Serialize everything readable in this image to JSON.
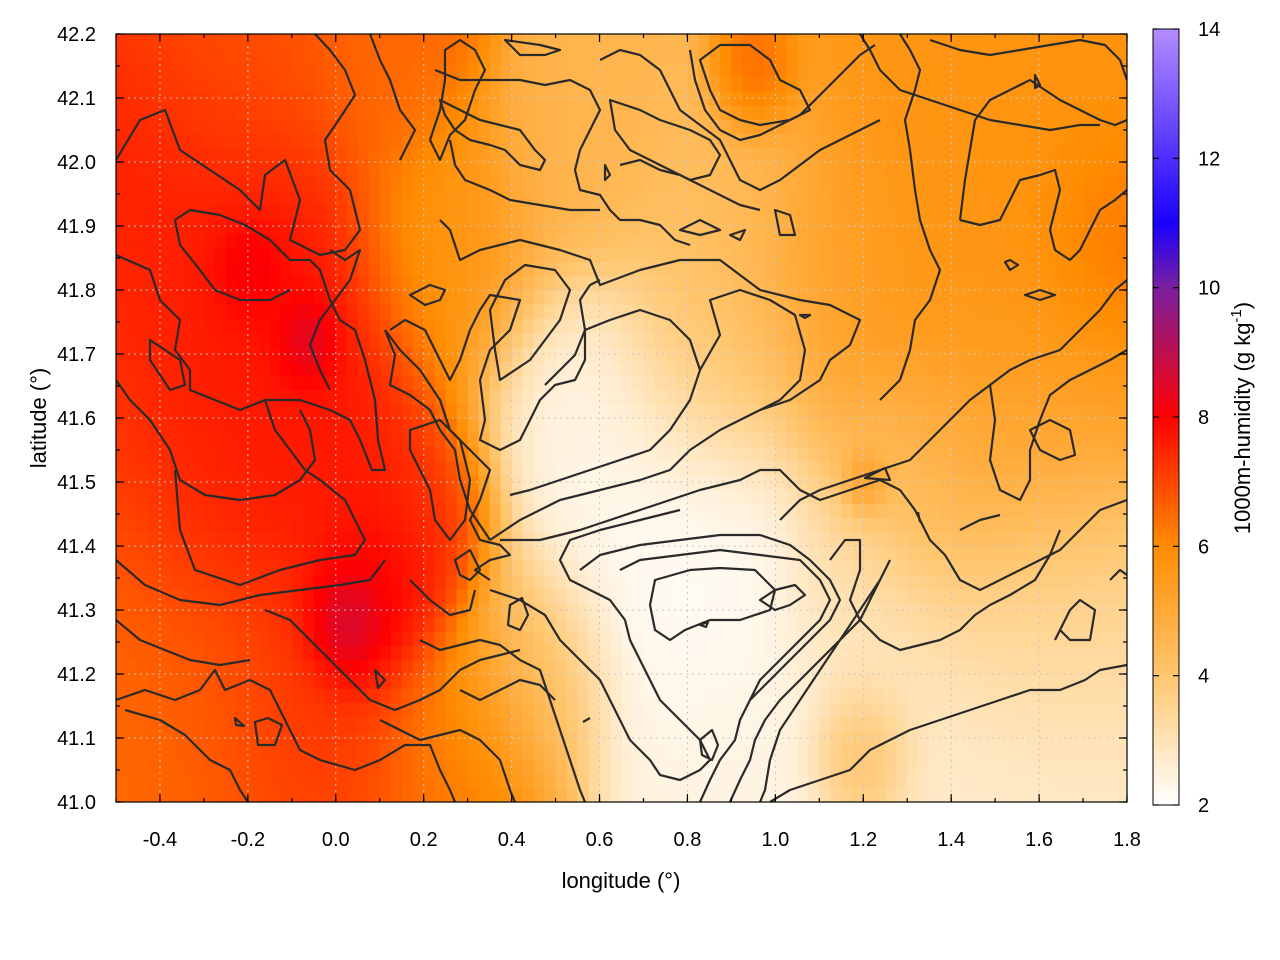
{
  "chart_data": {
    "type": "heatmap",
    "xlabel": "longitude (°)",
    "ylabel": "latitude (°)",
    "colorbar_label": "1000m-humidity (g kg",
    "colorbar_label_sup": "-1",
    "colorbar_label_end": ")",
    "xlim": [
      -0.5,
      1.8
    ],
    "ylim": [
      41.0,
      42.2
    ],
    "clim": [
      2,
      14
    ],
    "x_ticks": [
      {
        "value": -0.4,
        "label": "-0.4"
      },
      {
        "value": -0.2,
        "label": "-0.2"
      },
      {
        "value": 0.0,
        "label": "0.0"
      },
      {
        "value": 0.2,
        "label": "0.2"
      },
      {
        "value": 0.4,
        "label": "0.4"
      },
      {
        "value": 0.6,
        "label": "0.6"
      },
      {
        "value": 0.8,
        "label": "0.8"
      },
      {
        "value": 1.0,
        "label": "1.0"
      },
      {
        "value": 1.2,
        "label": "1.2"
      },
      {
        "value": 1.4,
        "label": "1.4"
      },
      {
        "value": 1.6,
        "label": "1.6"
      },
      {
        "value": 1.8,
        "label": "1.8"
      }
    ],
    "y_ticks": [
      {
        "value": 41.0,
        "label": "41.0"
      },
      {
        "value": 41.1,
        "label": "41.1"
      },
      {
        "value": 41.2,
        "label": "41.2"
      },
      {
        "value": 41.3,
        "label": "41.3"
      },
      {
        "value": 41.4,
        "label": "41.4"
      },
      {
        "value": 41.5,
        "label": "41.5"
      },
      {
        "value": 41.6,
        "label": "41.6"
      },
      {
        "value": 41.7,
        "label": "41.7"
      },
      {
        "value": 41.8,
        "label": "41.8"
      },
      {
        "value": 41.9,
        "label": "41.9"
      },
      {
        "value": 42.0,
        "label": "42.0"
      },
      {
        "value": 42.1,
        "label": "42.1"
      },
      {
        "value": 42.2,
        "label": "42.2"
      }
    ],
    "colorbar_ticks": [
      {
        "value": 2,
        "label": "2"
      },
      {
        "value": 4,
        "label": "4"
      },
      {
        "value": 6,
        "label": "6"
      },
      {
        "value": 8,
        "label": "8"
      },
      {
        "value": 10,
        "label": "10"
      },
      {
        "value": 12,
        "label": "12"
      },
      {
        "value": 14,
        "label": "14"
      }
    ],
    "colormap": [
      {
        "value": 2,
        "color": "#ffffff"
      },
      {
        "value": 4,
        "color": "#ffc66e"
      },
      {
        "value": 6,
        "color": "#ff8c00"
      },
      {
        "value": 8,
        "color": "#ff0000"
      },
      {
        "value": 10,
        "color": "#7a1fa0"
      },
      {
        "value": 11,
        "color": "#1a00ff"
      },
      {
        "value": 14,
        "color": "#b48cff"
      }
    ],
    "grid": true,
    "humidity_field_blobs": [
      {
        "lon": -0.5,
        "lat": 41.0,
        "value": 6.5,
        "spread": 0.6
      },
      {
        "lon": -0.35,
        "lat": 41.9,
        "value": 7.6,
        "spread": 0.25
      },
      {
        "lon": -0.3,
        "lat": 41.6,
        "value": 7.5,
        "spread": 0.25
      },
      {
        "lon": -0.15,
        "lat": 41.7,
        "value": 8.0,
        "spread": 0.25
      },
      {
        "lon": -0.1,
        "lat": 41.45,
        "value": 7.8,
        "spread": 0.25
      },
      {
        "lon": -0.07,
        "lat": 41.72,
        "value": 9.6,
        "spread": 0.06
      },
      {
        "lon": -0.2,
        "lat": 41.83,
        "value": 9.0,
        "spread": 0.07
      },
      {
        "lon": 0.02,
        "lat": 41.28,
        "value": 10.0,
        "spread": 0.08
      },
      {
        "lon": 0.1,
        "lat": 41.35,
        "value": 8.4,
        "spread": 0.12
      },
      {
        "lon": -0.1,
        "lat": 41.1,
        "value": 7.5,
        "spread": 0.18
      },
      {
        "lon": -0.3,
        "lat": 41.15,
        "value": 6.6,
        "spread": 0.18
      },
      {
        "lon": 0.2,
        "lat": 41.45,
        "value": 7.3,
        "spread": 0.12
      },
      {
        "lon": 0.25,
        "lat": 41.85,
        "value": 5.6,
        "spread": 0.18
      },
      {
        "lon": 0.1,
        "lat": 42.15,
        "value": 6.5,
        "spread": 0.15
      },
      {
        "lon": -0.2,
        "lat": 42.15,
        "value": 6.8,
        "spread": 0.2
      },
      {
        "lon": 0.3,
        "lat": 41.1,
        "value": 6.2,
        "spread": 0.15
      },
      {
        "lon": 0.45,
        "lat": 41.2,
        "value": 4.2,
        "spread": 0.14
      },
      {
        "lon": 0.55,
        "lat": 42.0,
        "value": 4.6,
        "spread": 0.15
      },
      {
        "lon": 0.55,
        "lat": 41.6,
        "value": 2.3,
        "spread": 0.18
      },
      {
        "lon": 0.75,
        "lat": 41.35,
        "value": 2.1,
        "spread": 0.25
      },
      {
        "lon": 0.9,
        "lat": 41.05,
        "value": 2.4,
        "spread": 0.2
      },
      {
        "lon": 0.85,
        "lat": 41.75,
        "value": 4.0,
        "spread": 0.2
      },
      {
        "lon": 0.95,
        "lat": 42.12,
        "value": 6.8,
        "spread": 0.07
      },
      {
        "lon": 0.9,
        "lat": 41.95,
        "value": 4.4,
        "spread": 0.15
      },
      {
        "lon": 1.1,
        "lat": 41.85,
        "value": 5.2,
        "spread": 0.15
      },
      {
        "lon": 1.4,
        "lat": 41.9,
        "value": 5.6,
        "spread": 0.3
      },
      {
        "lon": 1.6,
        "lat": 42.0,
        "value": 5.8,
        "spread": 0.25
      },
      {
        "lon": 1.75,
        "lat": 41.9,
        "value": 6.5,
        "spread": 0.12
      },
      {
        "lon": 1.5,
        "lat": 41.55,
        "value": 5.2,
        "spread": 0.2
      },
      {
        "lon": 1.3,
        "lat": 41.5,
        "value": 4.2,
        "spread": 0.15
      },
      {
        "lon": 1.21,
        "lat": 41.5,
        "value": 6.2,
        "spread": 0.04
      },
      {
        "lon": 1.55,
        "lat": 41.3,
        "value": 3.5,
        "spread": 0.2
      },
      {
        "lon": 1.45,
        "lat": 41.05,
        "value": 2.7,
        "spread": 0.25
      },
      {
        "lon": 1.2,
        "lat": 41.07,
        "value": 4.5,
        "spread": 0.09
      },
      {
        "lon": 1.2,
        "lat": 41.3,
        "value": 3.0,
        "spread": 0.15
      }
    ]
  }
}
